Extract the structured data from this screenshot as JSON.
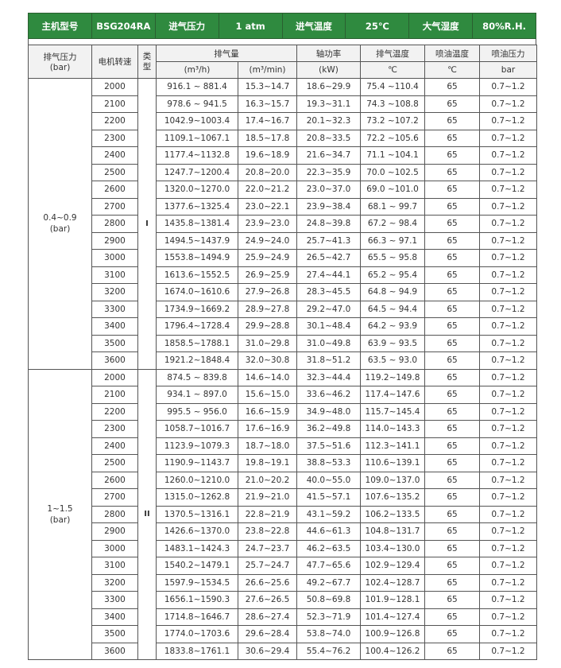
{
  "spec_bar": [
    {
      "label": "主机型号",
      "value": "BSG204RA"
    },
    {
      "label": "进气压力",
      "value": "1 atm"
    },
    {
      "label": "进气温度",
      "value": "25℃"
    },
    {
      "label": "大气湿度",
      "value": "80%R.H."
    }
  ],
  "headers": {
    "pressure": "排气压力",
    "pressure_unit": "(bar)",
    "rpm": "电机转速",
    "type": "类型",
    "flow": "排气量",
    "flow_h": "(m³/h)",
    "flow_min": "(m³/min)",
    "power": "轴功率",
    "power_unit": "(kW)",
    "exhaust_temp": "排气温度",
    "exhaust_temp_unit": "℃",
    "oil_temp": "喷油温度",
    "oil_temp_unit": "℃",
    "oil_pressure": "喷油压力",
    "oil_pressure_unit": "bar"
  },
  "groups": [
    {
      "pressure": "0.4~0.9",
      "unit": "(bar)",
      "type": "I",
      "rows": [
        [
          "2000",
          "916.1  ~ 881.4",
          "15.3~14.7",
          "18.6~29.9",
          "75.4 ~110.4",
          "65",
          "0.7~1.2"
        ],
        [
          "2100",
          "978.6  ~ 941.5",
          "16.3~15.7",
          "19.3~31.1",
          "74.3 ~108.8",
          "65",
          "0.7~1.2"
        ],
        [
          "2200",
          "1042.9~1003.4",
          "17.4~16.7",
          "20.1~32.3",
          "73.2 ~107.2",
          "65",
          "0.7~1.2"
        ],
        [
          "2300",
          "1109.1~1067.1",
          "18.5~17.8",
          "20.8~33.5",
          "72.2 ~105.6",
          "65",
          "0.7~1.2"
        ],
        [
          "2400",
          "1177.4~1132.8",
          "19.6~18.9",
          "21.6~34.7",
          "71.1 ~104.1",
          "65",
          "0.7~1.2"
        ],
        [
          "2500",
          "1247.7~1200.4",
          "20.8~20.0",
          "22.3~35.9",
          "70.0 ~102.5",
          "65",
          "0.7~1.2"
        ],
        [
          "2600",
          "1320.0~1270.0",
          "22.0~21.2",
          "23.0~37.0",
          "69.0 ~101.0",
          "65",
          "0.7~1.2"
        ],
        [
          "2700",
          "1377.6~1325.4",
          "23.0~22.1",
          "23.9~38.4",
          "68.1 ~ 99.7",
          "65",
          "0.7~1.2"
        ],
        [
          "2800",
          "1435.8~1381.4",
          "23.9~23.0",
          "24.8~39.8",
          "67.2 ~ 98.4",
          "65",
          "0.7~1.2"
        ],
        [
          "2900",
          "1494.5~1437.9",
          "24.9~24.0",
          "25.7~41.3",
          "66.3 ~ 97.1",
          "65",
          "0.7~1.2"
        ],
        [
          "3000",
          "1553.8~1494.9",
          "25.9~24.9",
          "26.5~42.7",
          "65.5 ~ 95.8",
          "65",
          "0.7~1.2"
        ],
        [
          "3100",
          "1613.6~1552.5",
          "26.9~25.9",
          "27.4~44.1",
          "65.2 ~ 95.4",
          "65",
          "0.7~1.2"
        ],
        [
          "3200",
          "1674.0~1610.6",
          "27.9~26.8",
          "28.3~45.5",
          "64.8 ~ 94.9",
          "65",
          "0.7~1.2"
        ],
        [
          "3300",
          "1734.9~1669.2",
          "28.9~27.8",
          "29.2~47.0",
          "64.5 ~ 94.4",
          "65",
          "0.7~1.2"
        ],
        [
          "3400",
          "1796.4~1728.4",
          "29.9~28.8",
          "30.1~48.4",
          "64.2 ~ 93.9",
          "65",
          "0.7~1.2"
        ],
        [
          "3500",
          "1858.5~1788.1",
          "31.0~29.8",
          "31.0~49.8",
          "63.9 ~ 93.5",
          "65",
          "0.7~1.2"
        ],
        [
          "3600",
          "1921.2~1848.4",
          "32.0~30.8",
          "31.8~51.2",
          "63.5 ~ 93.0",
          "65",
          "0.7~1.2"
        ]
      ]
    },
    {
      "pressure": "1~1.5",
      "unit": "(bar)",
      "type": "II",
      "rows": [
        [
          "2000",
          "874.5  ~ 839.8",
          "14.6~14.0",
          "32.3~44.4",
          "119.2~149.8",
          "65",
          "0.7~1.2"
        ],
        [
          "2100",
          "934.1  ~ 897.0",
          "15.6~15.0",
          "33.6~46.2",
          "117.4~147.6",
          "65",
          "0.7~1.2"
        ],
        [
          "2200",
          "995.5  ~ 956.0",
          "16.6~15.9",
          "34.9~48.0",
          "115.7~145.4",
          "65",
          "0.7~1.2"
        ],
        [
          "2300",
          "1058.7~1016.7",
          "17.6~16.9",
          "36.2~49.8",
          "114.0~143.3",
          "65",
          "0.7~1.2"
        ],
        [
          "2400",
          "1123.9~1079.3",
          "18.7~18.0",
          "37.5~51.6",
          "112.3~141.1",
          "65",
          "0.7~1.2"
        ],
        [
          "2500",
          "1190.9~1143.7",
          "19.8~19.1",
          "38.8~53.3",
          "110.6~139.1",
          "65",
          "0.7~1.2"
        ],
        [
          "2600",
          "1260.0~1210.0",
          "21.0~20.2",
          "40.0~55.0",
          "109.0~137.0",
          "65",
          "0.7~1.2"
        ],
        [
          "2700",
          "1315.0~1262.8",
          "21.9~21.0",
          "41.5~57.1",
          "107.6~135.2",
          "65",
          "0.7~1.2"
        ],
        [
          "2800",
          "1370.5~1316.1",
          "22.8~21.9",
          "43.1~59.2",
          "106.2~133.5",
          "65",
          "0.7~1.2"
        ],
        [
          "2900",
          "1426.6~1370.0",
          "23.8~22.8",
          "44.6~61.3",
          "104.8~131.7",
          "65",
          "0.7~1.2"
        ],
        [
          "3000",
          "1483.1~1424.3",
          "24.7~23.7",
          "46.2~63.5",
          "103.4~130.0",
          "65",
          "0.7~1.2"
        ],
        [
          "3100",
          "1540.2~1479.1",
          "25.7~24.7",
          "47.7~65.6",
          "102.9~129.4",
          "65",
          "0.7~1.2"
        ],
        [
          "3200",
          "1597.9~1534.5",
          "26.6~25.6",
          "49.2~67.7",
          "102.4~128.7",
          "65",
          "0.7~1.2"
        ],
        [
          "3300",
          "1656.1~1590.3",
          "27.6~26.5",
          "50.8~69.8",
          "101.9~128.1",
          "65",
          "0.7~1.2"
        ],
        [
          "3400",
          "1714.8~1646.7",
          "28.6~27.4",
          "52.3~71.9",
          "101.4~127.4",
          "65",
          "0.7~1.2"
        ],
        [
          "3500",
          "1774.0~1703.6",
          "29.6~28.4",
          "53.8~74.0",
          "100.9~126.8",
          "65",
          "0.7~1.2"
        ],
        [
          "3600",
          "1833.8~1761.1",
          "30.6~29.4",
          "55.4~76.2",
          "100.4~126.2",
          "65",
          "0.7~1.2"
        ]
      ]
    }
  ],
  "colors": {
    "header_green": "#2f8a3f"
  }
}
